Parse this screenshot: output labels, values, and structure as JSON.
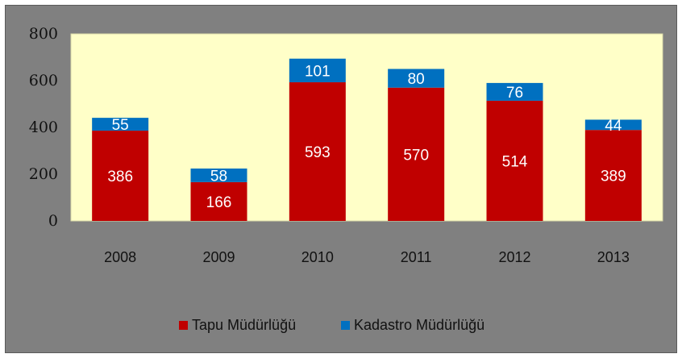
{
  "chart_data": {
    "type": "bar",
    "stacked": true,
    "categories": [
      "2008",
      "2009",
      "2010",
      "2011",
      "2012",
      "2013"
    ],
    "series": [
      {
        "name": "Tapu Müdürlüğü",
        "color": "#c00000",
        "label_color": "#ffffff",
        "values": [
          386,
          166,
          593,
          570,
          514,
          389
        ]
      },
      {
        "name": "Kadastro Müdürlüğü",
        "color": "#0070c0",
        "label_color": "#ffffff",
        "values": [
          55,
          58,
          101,
          80,
          76,
          44
        ]
      }
    ],
    "yticks": [
      0,
      200,
      400,
      600,
      800
    ],
    "ylim": [
      0,
      800
    ],
    "grid": false,
    "plot_background": "#ffffc8",
    "frame_background": "#808080",
    "legend_position": "bottom"
  }
}
